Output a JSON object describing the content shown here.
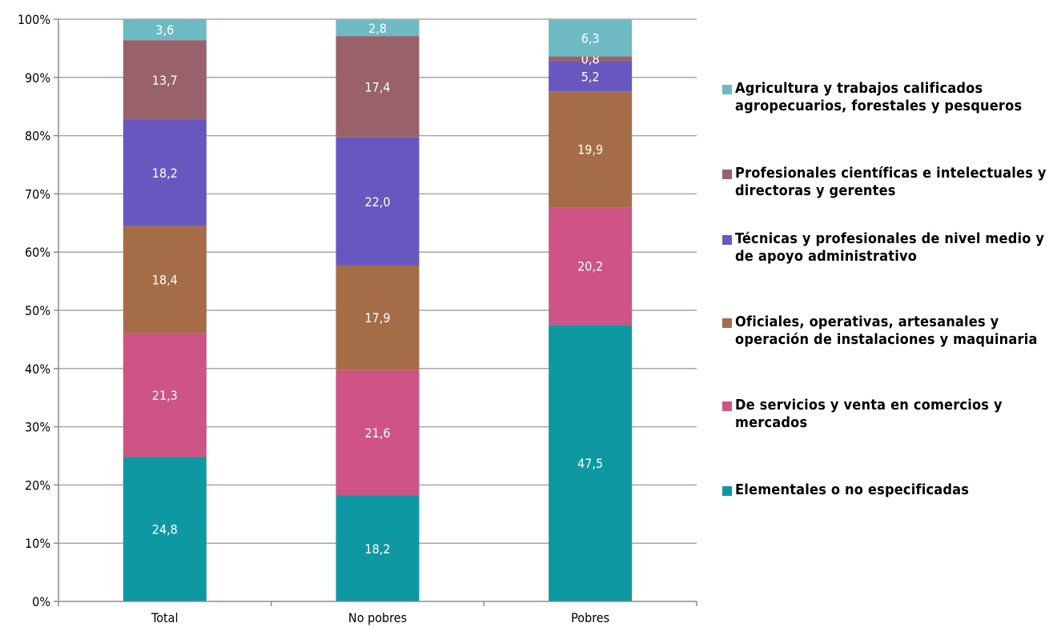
{
  "chart_data": {
    "type": "bar",
    "stacked": true,
    "categories": [
      "Total",
      "No pobres",
      "Pobres"
    ],
    "y_ticks": [
      "0%",
      "10%",
      "20%",
      "30%",
      "40%",
      "50%",
      "60%",
      "70%",
      "80%",
      "90%",
      "100%"
    ],
    "ylim": [
      0,
      100
    ],
    "series": [
      {
        "name": "Elementales  o no especificadas",
        "color": "#0E98A2",
        "values": [
          24.8,
          18.2,
          47.5
        ],
        "labels": [
          "24,8",
          "18,2",
          "47,5"
        ]
      },
      {
        "name": "De servicios y venta en comercios y mercados",
        "color": "#CD5484",
        "values": [
          21.3,
          21.6,
          20.2
        ],
        "labels": [
          "21,3",
          "21,6",
          "20,2"
        ]
      },
      {
        "name": "Oficiales,  operativas, artesanales y operación de instalaciones y maquinaria",
        "color": "#A46D47",
        "values": [
          18.4,
          17.9,
          19.9
        ],
        "labels": [
          "18,4",
          "17,9",
          "19,9"
        ]
      },
      {
        "name": "Técnicas y profesionales de nivel medio y de apoyo administrativo",
        "color": "#6757BF",
        "values": [
          18.2,
          22.0,
          5.2
        ],
        "labels": [
          "18,2",
          "22,0",
          "5,2"
        ]
      },
      {
        "name": "Profesionales científicas e intelectuales  y directoras y gerentes",
        "color": "#99616A",
        "values": [
          13.7,
          17.4,
          0.8
        ],
        "labels": [
          "13,7",
          "17,4",
          "0,8"
        ]
      },
      {
        "name": "Agricultura y trabajos calificados agropecuarios, forestales y pesqueros",
        "color": "#6DBAC2",
        "values": [
          3.6,
          2.8,
          6.3
        ],
        "labels": [
          "3,6",
          "2,8",
          "6,3"
        ]
      }
    ],
    "legend_order": [
      5,
      4,
      3,
      2,
      1,
      0
    ],
    "legend_position": "right",
    "grid": true
  }
}
